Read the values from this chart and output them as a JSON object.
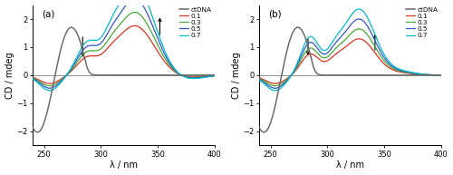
{
  "xlim": [
    240,
    400
  ],
  "ylim_a": [
    -2.5,
    2.5
  ],
  "ylim_b": [
    -2.5,
    2.5
  ],
  "yticks": [
    -2,
    -1,
    0,
    1,
    2
  ],
  "xticks": [
    250,
    300,
    350,
    400
  ],
  "xlabel": "λ / nm",
  "ylabel": "CD / mdeg",
  "label_a": "(a)",
  "label_b": "(b)",
  "legend_labels": [
    "ctDNA",
    "0.1",
    "0.3",
    "0.5",
    "0.7"
  ],
  "colors": {
    "ctDNA": "#666666",
    "r01": "#e03020",
    "r03": "#44aa33",
    "r05": "#3355cc",
    "r07": "#00bbcc"
  }
}
